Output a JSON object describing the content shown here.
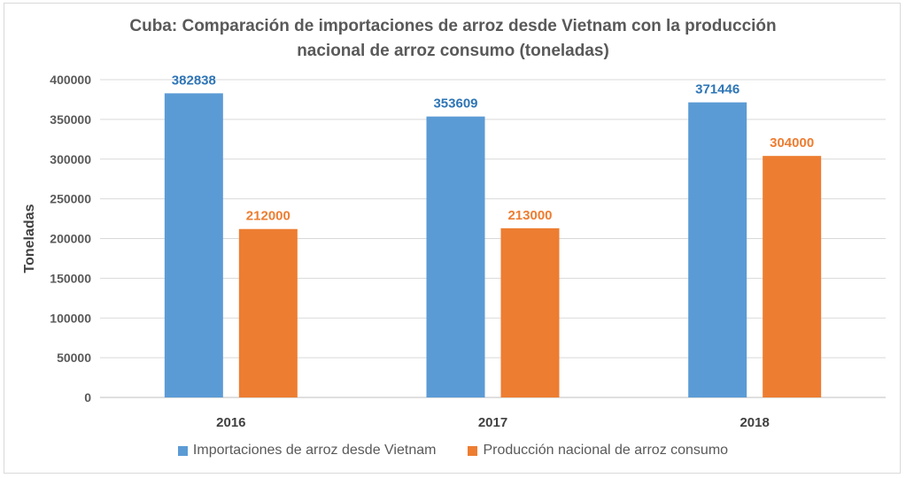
{
  "chart_data": {
    "type": "bar",
    "title": "Cuba: Comparación de importaciones de arroz desde Vietnam con la producción nacional de arroz consumo (toneladas)",
    "title_lines": [
      "Cuba: Comparación de importaciones de arroz desde Vietnam con la producción",
      "nacional de arroz consumo (toneladas)"
    ],
    "categories": [
      "2016",
      "2017",
      "2018"
    ],
    "series": [
      {
        "name": "Importaciones de arroz desde Vietnam",
        "values": [
          382838,
          353609,
          371446
        ],
        "color": "#5b9bd5",
        "label_color": "#2e75b6"
      },
      {
        "name": "Producción nacional de arroz consumo",
        "values": [
          212000,
          213000,
          304000
        ],
        "color": "#ed7d31",
        "label_color": "#ed7d31"
      }
    ],
    "xlabel": "",
    "ylabel": "Toneladas",
    "ylim": [
      0,
      400000
    ],
    "yticks": [
      0,
      50000,
      100000,
      150000,
      200000,
      250000,
      300000,
      350000,
      400000
    ],
    "grid": true,
    "legend_position": "bottom"
  }
}
